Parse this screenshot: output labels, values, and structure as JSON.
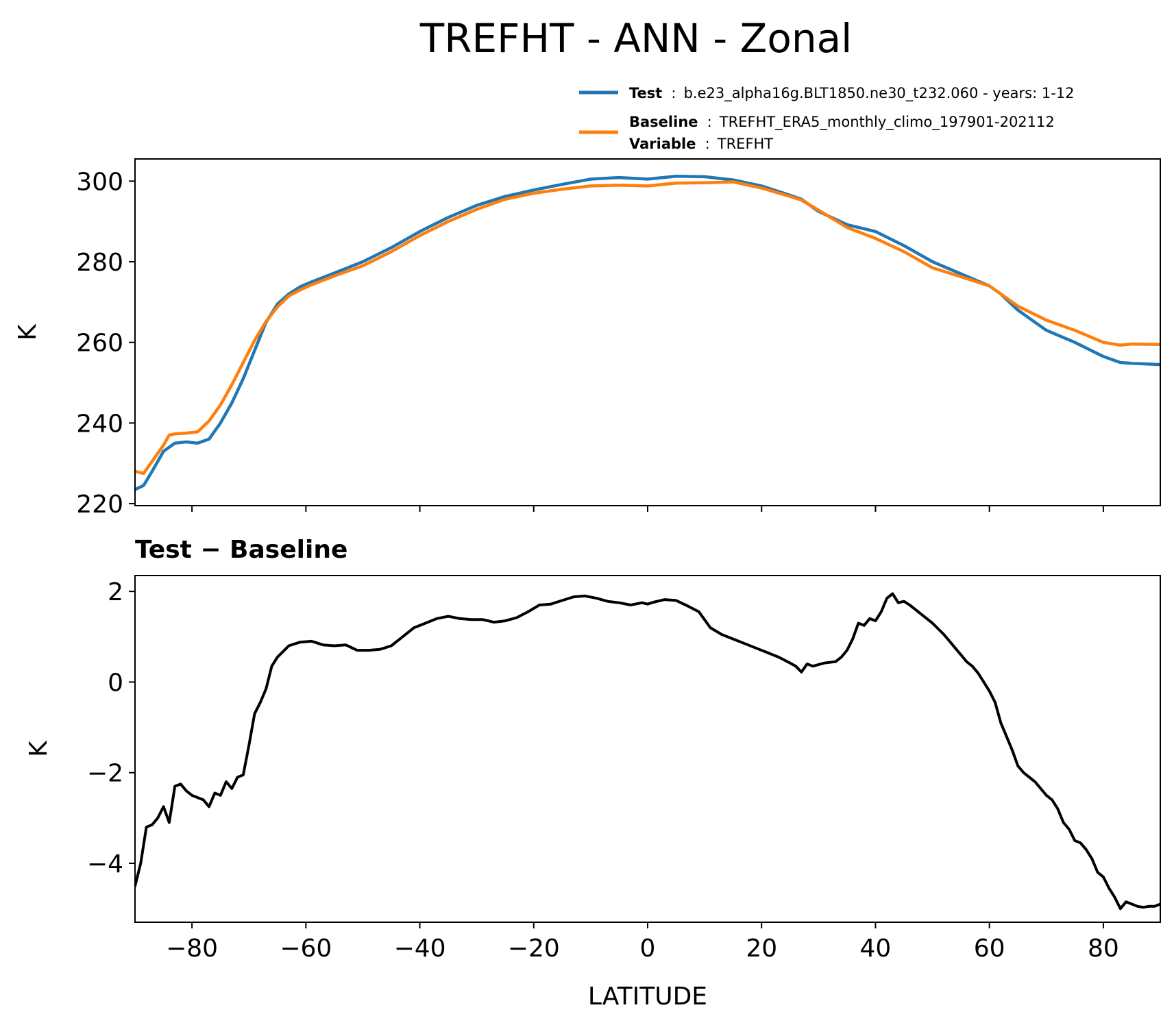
{
  "figure": {
    "title": "TREFHT - ANN - Zonal",
    "legend": [
      {
        "key": "Test",
        "sep": ":",
        "value": "b.e23_alpha16g.BLT1850.ne30_t232.060 - years: 1-12",
        "color": "#1f77b4"
      },
      {
        "key": "Baseline",
        "sep": ":",
        "value": "TREFHT_ERA5_monthly_climo_197901-202112",
        "color": "#ff7f0e"
      },
      {
        "key": "Variable",
        "sep": ":",
        "value": "TREFHT"
      }
    ],
    "diff_title": "Test − Baseline"
  },
  "chart_data": [
    {
      "type": "line",
      "title": "TREFHT - ANN - Zonal",
      "xlabel": "",
      "ylabel": "K",
      "xlim": [
        -90,
        90
      ],
      "ylim": [
        219.5,
        305.5
      ],
      "xticks": [
        -80,
        -60,
        -40,
        -20,
        0,
        20,
        40,
        60,
        80
      ],
      "yticks": [
        220,
        240,
        260,
        280,
        300
      ],
      "ytick_labels": [
        "220",
        "240",
        "260",
        "280",
        "300"
      ],
      "grid": false,
      "legend_position": "above-right",
      "series": [
        {
          "name": "Test",
          "color": "#1f77b4",
          "x": [
            -90,
            -88.5,
            -87,
            -85,
            -83,
            -81,
            -79,
            -77,
            -75,
            -73,
            -71,
            -69,
            -67,
            -65,
            -63,
            -61,
            -59,
            -55,
            -50,
            -45,
            -40,
            -35,
            -30,
            -25,
            -20,
            -15,
            -10,
            -5,
            0,
            5,
            10,
            15,
            20,
            25,
            27,
            30,
            35,
            40,
            45,
            50,
            55,
            60,
            62,
            65,
            70,
            75,
            80,
            83,
            85,
            90
          ],
          "y": [
            223.5,
            224.5,
            228,
            233,
            235,
            235.3,
            235,
            236,
            240,
            245,
            251,
            258,
            265,
            269.5,
            272,
            273.8,
            275,
            277.2,
            280,
            283.5,
            287.5,
            291,
            294,
            296.2,
            297.8,
            299.2,
            300.5,
            300.9,
            300.5,
            301.2,
            301.1,
            300.3,
            298.8,
            296.5,
            295.5,
            292.5,
            289.2,
            287.5,
            284,
            280,
            277,
            274,
            272,
            268,
            263,
            260,
            256.5,
            255,
            254.8,
            254.5
          ]
        },
        {
          "name": "Baseline",
          "color": "#ff7f0e",
          "x": [
            -90,
            -88.5,
            -87,
            -85,
            -84,
            -83,
            -81,
            -79,
            -77,
            -75,
            -73,
            -71,
            -69,
            -67,
            -65,
            -63,
            -61,
            -59,
            -55,
            -50,
            -45,
            -40,
            -35,
            -30,
            -25,
            -20,
            -15,
            -10,
            -5,
            0,
            5,
            10,
            15,
            20,
            25,
            27,
            30,
            35,
            40,
            45,
            50,
            55,
            60,
            62,
            65,
            70,
            75,
            80,
            83,
            85,
            90
          ],
          "y": [
            228,
            227.5,
            230.5,
            234.5,
            237,
            237.3,
            237.5,
            237.8,
            240.5,
            244.5,
            249.5,
            255,
            260.5,
            265.2,
            268.8,
            271.5,
            273,
            274.3,
            276.5,
            279,
            282.5,
            286.5,
            290,
            293,
            295.5,
            297,
            298,
            298.8,
            299,
            298.8,
            299.5,
            299.6,
            299.8,
            298.3,
            296.2,
            295.3,
            292.8,
            288.5,
            285.8,
            282.5,
            278.5,
            276.3,
            274,
            272,
            269,
            265.5,
            263,
            260,
            259.3,
            259.6,
            259.5
          ]
        }
      ]
    },
    {
      "type": "line",
      "title": "Test − Baseline",
      "xlabel": "LATITUDE",
      "ylabel": "K",
      "xlim": [
        -90,
        90
      ],
      "ylim": [
        -5.3,
        2.35
      ],
      "xticks": [
        -80,
        -60,
        -40,
        -20,
        0,
        20,
        40,
        60,
        80
      ],
      "xtick_labels": [
        "−80",
        "−60",
        "−40",
        "−20",
        "0",
        "20",
        "40",
        "60",
        "80"
      ],
      "yticks": [
        -4,
        -2,
        0,
        2
      ],
      "ytick_labels": [
        "−4",
        "−2",
        "0",
        "2"
      ],
      "grid": false,
      "series": [
        {
          "name": "",
          "color": "#000000",
          "x": [
            -90,
            -89,
            -88,
            -87,
            -86,
            -85,
            -84,
            -83,
            -82,
            -81,
            -80,
            -79,
            -78,
            -77,
            -76,
            -75,
            -74,
            -73,
            -72,
            -71,
            -70,
            -69,
            -68,
            -67,
            -66,
            -65,
            -63,
            -61,
            -59,
            -57,
            -55,
            -53,
            -51,
            -49,
            -47,
            -45,
            -43,
            -41,
            -39,
            -37,
            -35,
            -33,
            -31,
            -29,
            -27,
            -25,
            -23,
            -21,
            -19,
            -17,
            -15,
            -13,
            -11,
            -9,
            -7,
            -5,
            -3,
            -1,
            0,
            1,
            3,
            5,
            7,
            9,
            11,
            13,
            15,
            17,
            19,
            21,
            23,
            25,
            26,
            27,
            28,
            29,
            31,
            33,
            34,
            35,
            36,
            37,
            38,
            39,
            40,
            41,
            42,
            43,
            44,
            45,
            46,
            47,
            48,
            50,
            52,
            54,
            56,
            57,
            58,
            59,
            60,
            61,
            62,
            63,
            64,
            65,
            66,
            68,
            70,
            71,
            72,
            73,
            74,
            75,
            76,
            77,
            78,
            79,
            80,
            81,
            82,
            83,
            84,
            85,
            86,
            87,
            88,
            89,
            90
          ],
          "y": [
            -4.5,
            -4.0,
            -3.2,
            -3.15,
            -3.0,
            -2.75,
            -3.1,
            -2.3,
            -2.25,
            -2.4,
            -2.5,
            -2.55,
            -2.6,
            -2.75,
            -2.45,
            -2.5,
            -2.2,
            -2.35,
            -2.1,
            -2.05,
            -1.4,
            -0.7,
            -0.45,
            -0.15,
            0.35,
            0.55,
            0.8,
            0.88,
            0.9,
            0.82,
            0.8,
            0.82,
            0.7,
            0.7,
            0.72,
            0.8,
            1.0,
            1.2,
            1.3,
            1.4,
            1.45,
            1.4,
            1.38,
            1.38,
            1.32,
            1.35,
            1.42,
            1.55,
            1.7,
            1.72,
            1.8,
            1.88,
            1.9,
            1.85,
            1.78,
            1.75,
            1.7,
            1.75,
            1.72,
            1.76,
            1.82,
            1.8,
            1.68,
            1.55,
            1.2,
            1.05,
            0.95,
            0.85,
            0.75,
            0.65,
            0.55,
            0.42,
            0.35,
            0.22,
            0.4,
            0.35,
            0.42,
            0.45,
            0.55,
            0.7,
            0.95,
            1.3,
            1.25,
            1.4,
            1.35,
            1.55,
            1.85,
            1.95,
            1.75,
            1.78,
            1.7,
            1.6,
            1.5,
            1.3,
            1.05,
            0.75,
            0.45,
            0.35,
            0.2,
            0.0,
            -0.2,
            -0.45,
            -0.9,
            -1.2,
            -1.5,
            -1.85,
            -2.0,
            -2.2,
            -2.5,
            -2.6,
            -2.8,
            -3.1,
            -3.25,
            -3.5,
            -3.55,
            -3.7,
            -3.9,
            -4.2,
            -4.3,
            -4.55,
            -4.75,
            -5.0,
            -4.85,
            -4.9,
            -4.95,
            -4.97,
            -4.95,
            -4.95,
            -4.9
          ]
        }
      ]
    }
  ]
}
